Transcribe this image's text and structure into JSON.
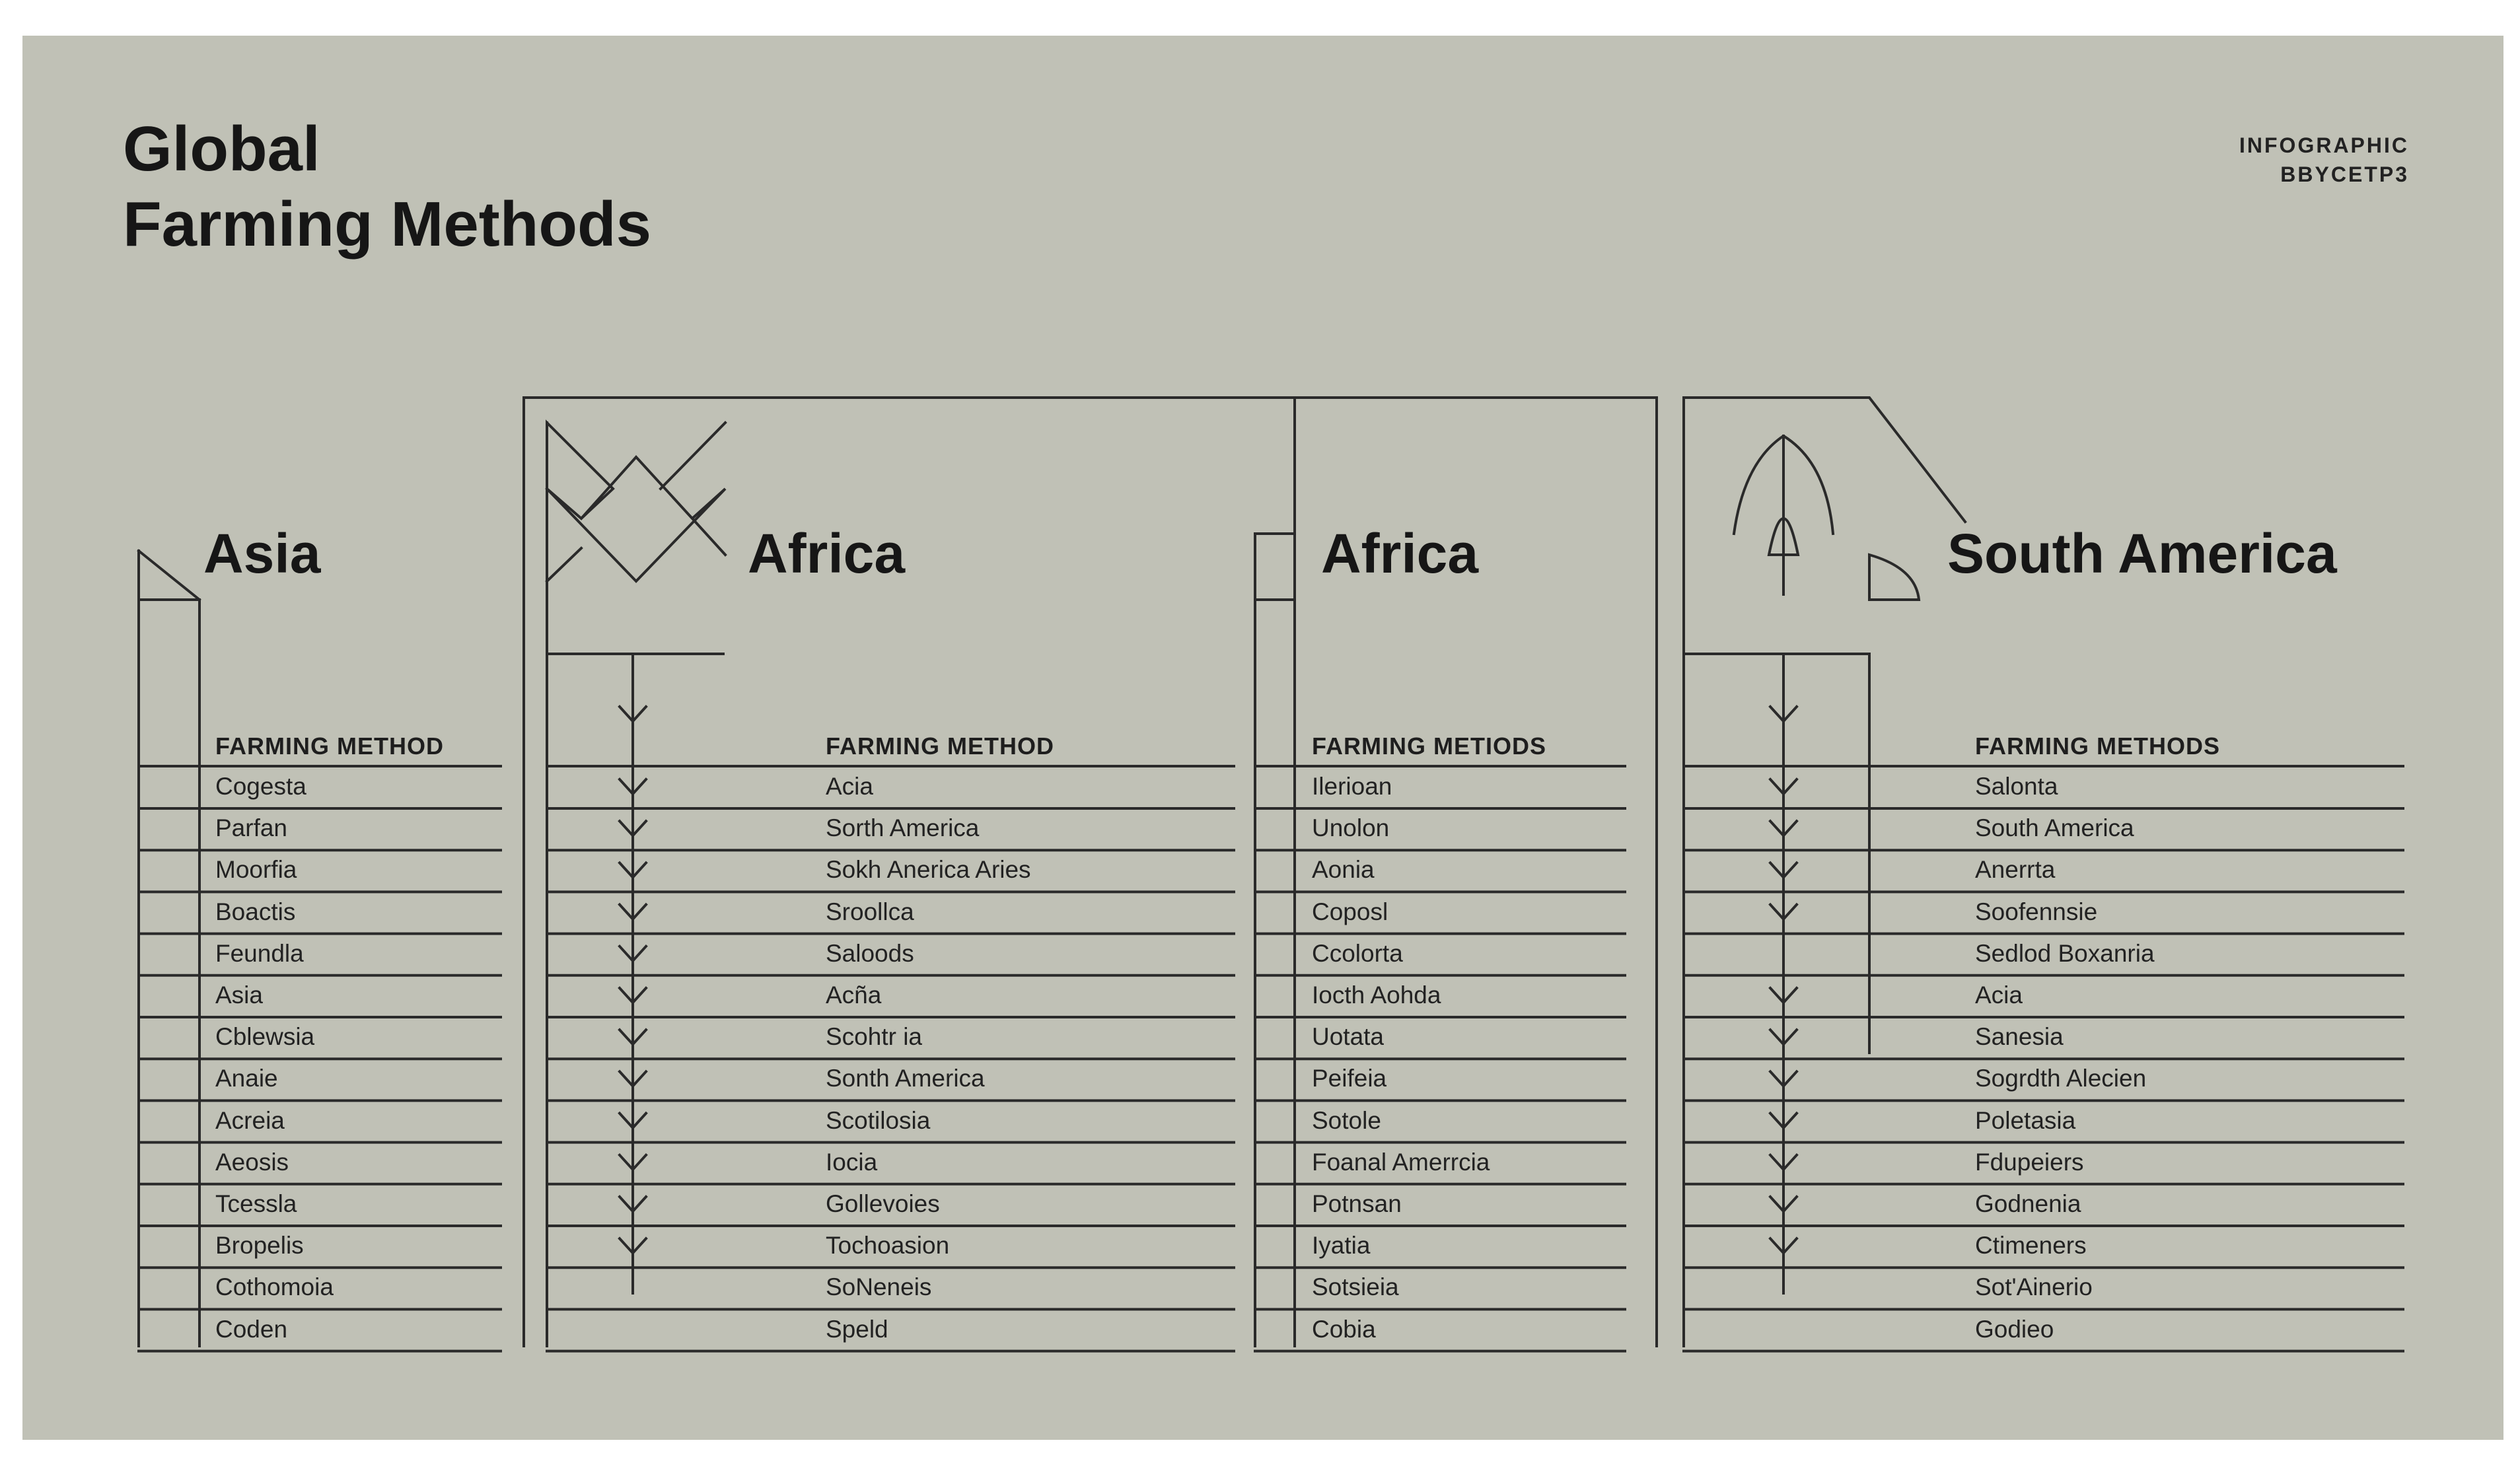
{
  "colors": {
    "background": "#c0c1b6",
    "ink": "#1c1c1c"
  },
  "title": {
    "line1": "Global",
    "line2": "Farming Methods"
  },
  "badge": {
    "line1": "INFOGRAPHIC",
    "line2": "BBYCETP3"
  },
  "icons": [
    "tent-icon",
    "star-icon",
    "bracket-icon",
    "leaf-icon",
    "quarter-circle-icon",
    "chevron-down-icon"
  ],
  "panels": [
    {
      "region": "Asia",
      "header": "FARMING METHOD",
      "rows": [
        "Cogesta",
        "Parfan",
        "Moorfia",
        "Boactis",
        "Feundla",
        "Asia",
        "Cblewsia",
        "Anaie",
        "Acreia",
        "Aeosis",
        "Tcessla",
        "Bropelis",
        "Cothomoia",
        "Coden"
      ]
    },
    {
      "region": "Africa",
      "header": "FARMING METHOD",
      "rows": [
        "Acia",
        "Sorth America",
        "Sokh Anerica Aries",
        "Sroollca",
        "Saloods",
        "Acña",
        "Scohtr ia",
        "Sonth America",
        "Scotilosia",
        "Iocia",
        "Gollevoies",
        "Tochoasion",
        "SoNeneis",
        "Speld"
      ]
    },
    {
      "region": "Africa",
      "header": "FARMING METIODS",
      "rows": [
        "Ilerioan",
        "Unolon",
        "Aonia",
        "Coposl",
        "Ccolorta",
        "Iocth Aohda",
        "Uotata",
        "Peifeia",
        "Sotole",
        "Foanal Amerrcia",
        "Potnsan",
        "Iyatia",
        "Sotsieia",
        "Cobia"
      ]
    },
    {
      "region": "South America",
      "header": "FARMING METHODS",
      "rows": [
        "Salonta",
        "South America",
        "Anerrta",
        "Soofennsie",
        "Sedlod Boxanria",
        "Acia",
        "Sanesia",
        "Sogrdth Alecien",
        "Poletasia",
        "Fdupeiers",
        "Godnenia",
        "Ctimeners",
        "Sot'Ainerio",
        "Godieo"
      ]
    }
  ]
}
